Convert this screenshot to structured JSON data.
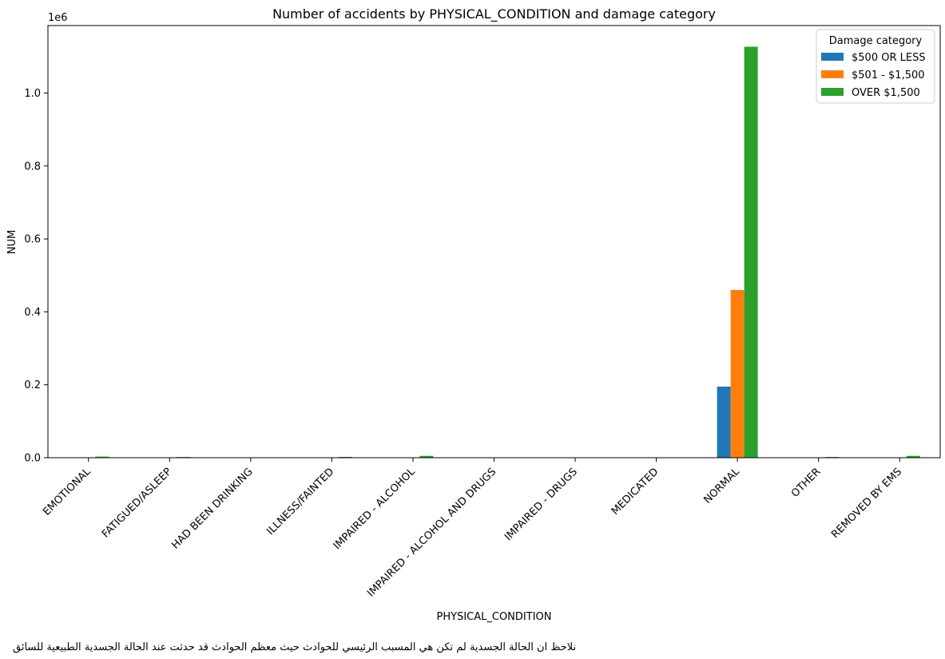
{
  "chart_data": {
    "type": "bar",
    "title": "Number of accidents by PHYSICAL_CONDITION and damage category",
    "xlabel": "PHYSICAL_CONDITION",
    "ylabel": "NUM",
    "y_offset_label": "1e6",
    "ylim": [
      0,
      1.185
    ],
    "y_ticks": [
      "0.0",
      "0.2",
      "0.4",
      "0.6",
      "0.8",
      "1.0"
    ],
    "legend_title": "Damage category",
    "legend_position": "top-right",
    "grid": false,
    "categories": [
      "EMOTIONAL",
      "FATIGUED/ASLEEP",
      "HAD BEEN DRINKING",
      "ILLNESS/FAINTED",
      "IMPAIRED - ALCOHOL",
      "IMPAIRED - ALCOHOL AND DRUGS",
      "IMPAIRED - DRUGS",
      "MEDICATED",
      "NORMAL",
      "OTHER",
      "REMOVED BY EMS"
    ],
    "series": [
      {
        "name": "$500 OR LESS",
        "color": "#1f77b4",
        "values": [
          0.0005,
          0.0003,
          0.0,
          0.0004,
          0.0004,
          0.0,
          0.0,
          0.0,
          0.195,
          0.0004,
          0.0005
        ]
      },
      {
        "name": "$501 - $1,500",
        "color": "#ff7f0e",
        "values": [
          0.001,
          0.0006,
          0.0001,
          0.0008,
          0.0012,
          0.0001,
          0.0001,
          0.0001,
          0.46,
          0.0008,
          0.001
        ]
      },
      {
        "name": "OVER $1,500",
        "color": "#2ca02c",
        "values": [
          0.003,
          0.002,
          0.0003,
          0.0022,
          0.005,
          0.0002,
          0.0002,
          0.0002,
          1.127,
          0.002,
          0.005
        ]
      }
    ]
  },
  "note": "نلاحظ ان الحالة الجسدية لم تكن هي المسبب الرئيسي للحوادث حيث معظم الحوادث قد حدثت عند الحالة الجسدية الطبيعية للسائق"
}
